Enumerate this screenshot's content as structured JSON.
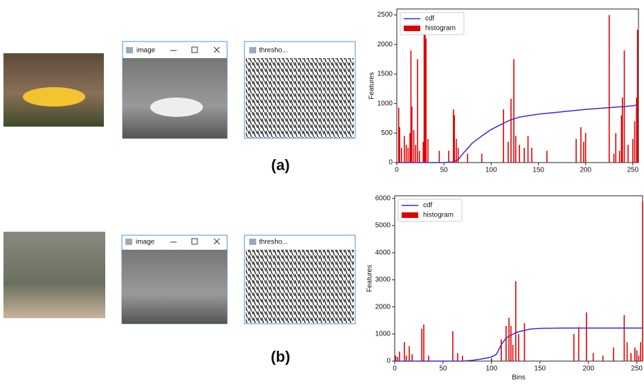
{
  "panels": [
    {
      "label": "(a)",
      "windows": [
        {
          "title": "image"
        },
        {
          "title": "thresho..."
        }
      ]
    },
    {
      "label": "(b)",
      "windows": [
        {
          "title": "image"
        },
        {
          "title": "thresho..."
        }
      ]
    }
  ],
  "chart_data": [
    {
      "type": "combo",
      "ylabel": "Features",
      "legend": "upper left",
      "xlim": [
        0,
        256
      ],
      "ylim": [
        0,
        2600
      ],
      "xticks": [
        0,
        50,
        100,
        150,
        200,
        250
      ],
      "yticks": [
        0,
        500,
        1000,
        1500,
        2000,
        2500
      ],
      "series": [
        {
          "name": "cdf",
          "kind": "line",
          "color": "#2a2af0",
          "x": [
            0,
            50,
            60,
            65,
            70,
            80,
            90,
            100,
            110,
            120,
            130,
            150,
            175,
            200,
            225,
            250,
            256
          ],
          "values": [
            0,
            0,
            10,
            50,
            150,
            330,
            450,
            560,
            640,
            720,
            770,
            820,
            860,
            900,
            930,
            960,
            980
          ]
        },
        {
          "name": "histogram",
          "kind": "bar",
          "color": "#e00000",
          "x": [
            2,
            3,
            5,
            8,
            10,
            12,
            14,
            15,
            16,
            18,
            20,
            22,
            24,
            28,
            29,
            30,
            31,
            33,
            45,
            55,
            60,
            61,
            63,
            65,
            75,
            90,
            113,
            118,
            121,
            124,
            126,
            130,
            135,
            139,
            143,
            159,
            190,
            195,
            198,
            200,
            225,
            230,
            232,
            236,
            238,
            239,
            241,
            245,
            250,
            252,
            254,
            255
          ],
          "values": [
            930,
            600,
            250,
            450,
            300,
            250,
            500,
            1900,
            950,
            550,
            300,
            1750,
            200,
            350,
            2200,
            2300,
            2100,
            400,
            200,
            200,
            900,
            800,
            400,
            250,
            150,
            150,
            900,
            350,
            1080,
            1750,
            450,
            300,
            250,
            450,
            250,
            200,
            400,
            600,
            350,
            500,
            2500,
            150,
            500,
            200,
            800,
            1100,
            1900,
            300,
            400,
            700,
            1100,
            2250
          ]
        }
      ]
    },
    {
      "type": "combo",
      "ylabel": "Features",
      "xlabel": "Bins",
      "legend": "upper left",
      "xlim": [
        0,
        256
      ],
      "ylim": [
        0,
        6100
      ],
      "xticks": [
        0,
        50,
        100,
        150,
        200,
        250
      ],
      "yticks": [
        0,
        1000,
        2000,
        3000,
        4000,
        5000,
        6000
      ],
      "series": [
        {
          "name": "cdf",
          "kind": "line",
          "color": "#2a2af0",
          "x": [
            0,
            70,
            80,
            90,
            100,
            105,
            110,
            115,
            120,
            125,
            130,
            140,
            150,
            175,
            256
          ],
          "values": [
            0,
            0,
            30,
            80,
            150,
            250,
            600,
            850,
            950,
            1050,
            1100,
            1180,
            1210,
            1220,
            1220
          ]
        },
        {
          "name": "histogram",
          "kind": "bar",
          "color": "#e00000",
          "x": [
            1,
            3,
            5,
            10,
            12,
            15,
            18,
            28,
            30,
            35,
            60,
            65,
            70,
            100,
            110,
            115,
            118,
            120,
            122,
            125,
            128,
            134,
            185,
            190,
            198,
            205,
            215,
            226,
            237,
            240,
            244,
            248,
            250,
            252,
            254,
            256
          ],
          "values": [
            200,
            150,
            350,
            700,
            200,
            550,
            250,
            1200,
            1350,
            200,
            1100,
            300,
            200,
            100,
            800,
            1300,
            1600,
            1300,
            600,
            2950,
            1000,
            1400,
            1000,
            1250,
            1800,
            300,
            200,
            500,
            1700,
            700,
            300,
            500,
            400,
            200,
            700,
            5900
          ]
        }
      ]
    }
  ]
}
